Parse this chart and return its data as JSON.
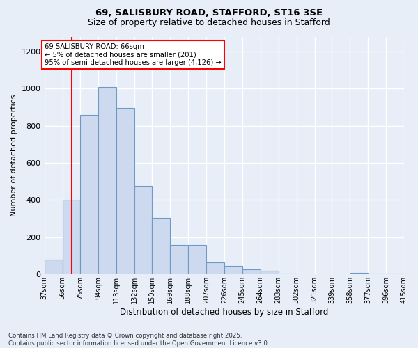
{
  "title1": "69, SALISBURY ROAD, STAFFORD, ST16 3SE",
  "title2": "Size of property relative to detached houses in Stafford",
  "xlabel": "Distribution of detached houses by size in Stafford",
  "ylabel": "Number of detached properties",
  "bin_labels": [
    "37sqm",
    "56sqm",
    "75sqm",
    "94sqm",
    "113sqm",
    "132sqm",
    "150sqm",
    "169sqm",
    "188sqm",
    "207sqm",
    "226sqm",
    "245sqm",
    "264sqm",
    "283sqm",
    "302sqm",
    "321sqm",
    "339sqm",
    "358sqm",
    "377sqm",
    "396sqm",
    "415sqm"
  ],
  "bar_values": [
    80,
    400,
    860,
    1010,
    895,
    475,
    305,
    160,
    160,
    65,
    45,
    28,
    18,
    5,
    0,
    0,
    0,
    10,
    5,
    5,
    10
  ],
  "bar_color": "#ccd9ee",
  "bar_edge_color": "#6e9ac4",
  "red_line_x": 66,
  "bin_edges": [
    37,
    56,
    75,
    94,
    113,
    132,
    150,
    169,
    188,
    207,
    226,
    245,
    264,
    283,
    302,
    321,
    339,
    358,
    377,
    396,
    415
  ],
  "ylim": [
    0,
    1280
  ],
  "yticks": [
    0,
    200,
    400,
    600,
    800,
    1000,
    1200
  ],
  "annotation_text": "69 SALISBURY ROAD: 66sqm\n← 5% of detached houses are smaller (201)\n95% of semi-detached houses are larger (4,126) →",
  "footer_text": "Contains HM Land Registry data © Crown copyright and database right 2025.\nContains public sector information licensed under the Open Government Licence v3.0.",
  "background_color": "#e8eef8",
  "grid_color": "#ffffff"
}
